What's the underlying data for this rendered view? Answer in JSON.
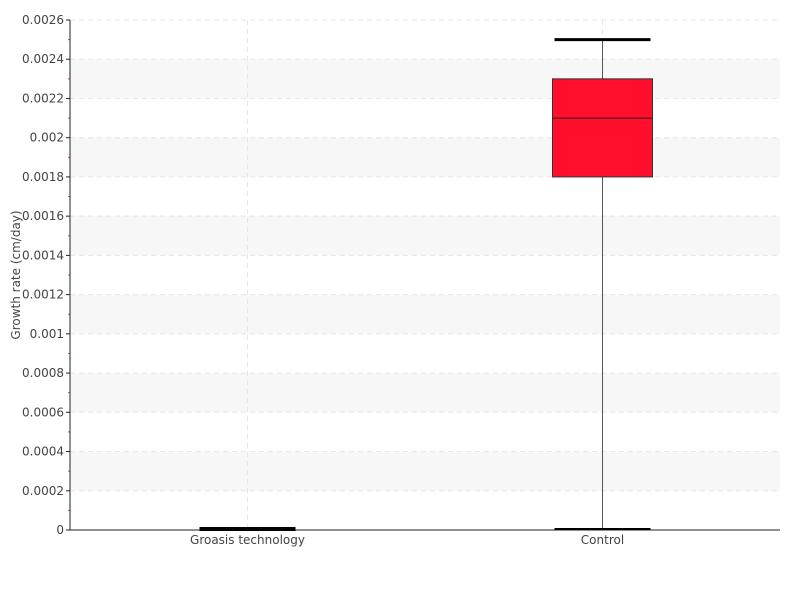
{
  "chart_data": {
    "type": "boxplot",
    "title": "",
    "xlabel": "",
    "ylabel": "Growth rate (cm/day)",
    "ylim": [
      0,
      0.0026
    ],
    "yticks": [
      "0",
      "0.0002",
      "0.0004",
      "0.0006",
      "0.0008",
      "0.001",
      "0.0012",
      "0.0014",
      "0.0016",
      "0.0018",
      "0.002",
      "0.0022",
      "0.0024",
      "0.0026"
    ],
    "grid": true,
    "categories": [
      "Groasis technology",
      "Control"
    ],
    "boxes": [
      {
        "category": "Groasis technology",
        "min": 0,
        "q1": 0,
        "median": 0,
        "q3": 0,
        "max": 0,
        "color": "#000000"
      },
      {
        "category": "Control",
        "min": 0,
        "q1": 0.0018,
        "median": 0.0021,
        "q3": 0.0023,
        "max": 0.0025,
        "color": "#ff0f2b"
      }
    ]
  }
}
